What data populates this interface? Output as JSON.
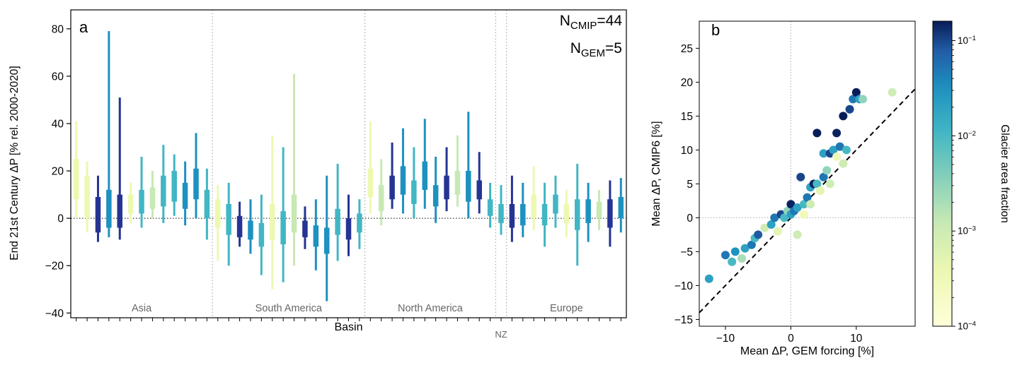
{
  "chart_data": [
    {
      "type": "bar",
      "panel_label": "a",
      "ylabel": "End 21st Century ΔP [% rel. 2000-2020]",
      "xlabel": "Basin",
      "ylim": [
        -42,
        88
      ],
      "yticks": [
        -40,
        -20,
        0,
        20,
        40,
        60,
        80
      ],
      "zero_line": 0,
      "annotations": [
        {
          "prefix": "N",
          "sub": "CMIP",
          "suffix": "=44"
        },
        {
          "prefix": "N",
          "sub": "GEM",
          "suffix": "=5"
        }
      ],
      "palette": {
        "y": "#edf8b1",
        "g": "#c7e9b4",
        "t": "#41b6c4",
        "b": "#1d91c0",
        "n": "#253494"
      },
      "bar_format": {
        "c": "color key",
        "r": "full range [lo,hi]",
        "q": "thick bar range [lo,hi]"
      },
      "regions": [
        {
          "name": "Asia",
          "below": false,
          "bars": [
            {
              "c": "y",
              "r": [
                0,
                41
              ],
              "q": [
                8,
                25
              ]
            },
            {
              "c": "y",
              "r": [
                -6,
                24
              ],
              "q": [
                0,
                18
              ]
            },
            {
              "c": "n",
              "r": [
                -10,
                18
              ],
              "q": [
                -6,
                9
              ]
            },
            {
              "c": "b",
              "r": [
                -8,
                79
              ],
              "q": [
                -4,
                12
              ]
            },
            {
              "c": "n",
              "r": [
                -9,
                51
              ],
              "q": [
                -4,
                10
              ]
            },
            {
              "c": "y",
              "r": [
                -2,
                15
              ],
              "q": [
                2,
                10
              ]
            },
            {
              "c": "t",
              "r": [
                -4,
                26
              ],
              "q": [
                2,
                12
              ]
            },
            {
              "c": "g",
              "r": [
                0,
                20
              ],
              "q": [
                4,
                13
              ]
            },
            {
              "c": "t",
              "r": [
                -2,
                31
              ],
              "q": [
                5,
                18
              ]
            },
            {
              "c": "t",
              "r": [
                1,
                27
              ],
              "q": [
                7,
                20
              ]
            },
            {
              "c": "b",
              "r": [
                -3,
                24
              ],
              "q": [
                4,
                15
              ]
            },
            {
              "c": "b",
              "r": [
                0,
                36
              ],
              "q": [
                8,
                21
              ]
            },
            {
              "c": "t",
              "r": [
                -9,
                21
              ],
              "q": [
                0,
                12
              ]
            }
          ]
        },
        {
          "name": "South America",
          "below": false,
          "bars": [
            {
              "c": "y",
              "r": [
                -18,
                14
              ],
              "q": [
                -4,
                8
              ]
            },
            {
              "c": "t",
              "r": [
                -20,
                15
              ],
              "q": [
                -7,
                6
              ]
            },
            {
              "c": "n",
              "r": [
                -12,
                7
              ],
              "q": [
                -8,
                1
              ]
            },
            {
              "c": "b",
              "r": [
                -15,
                8
              ],
              "q": [
                -9,
                -1
              ]
            },
            {
              "c": "t",
              "r": [
                -24,
                10
              ],
              "q": [
                -12,
                -2
              ]
            },
            {
              "c": "y",
              "r": [
                -30,
                35
              ],
              "q": [
                -9,
                6
              ]
            },
            {
              "c": "t",
              "r": [
                -27,
                30
              ],
              "q": [
                -11,
                3
              ]
            },
            {
              "c": "g",
              "r": [
                -20,
                61
              ],
              "q": [
                -6,
                10
              ]
            },
            {
              "c": "n",
              "r": [
                -13,
                5
              ],
              "q": [
                -8,
                -1
              ]
            },
            {
              "c": "b",
              "r": [
                -22,
                8
              ],
              "q": [
                -12,
                -3
              ]
            },
            {
              "c": "b",
              "r": [
                -35,
                18
              ],
              "q": [
                -15,
                -4
              ]
            },
            {
              "c": "t",
              "r": [
                -18,
                23
              ],
              "q": [
                -7,
                4
              ]
            },
            {
              "c": "n",
              "r": [
                -16,
                10
              ],
              "q": [
                -9,
                0
              ]
            },
            {
              "c": "t",
              "r": [
                -13,
                8
              ],
              "q": [
                -6,
                2
              ]
            }
          ]
        },
        {
          "name": "North America",
          "below": false,
          "bars": [
            {
              "c": "y",
              "r": [
                2,
                41
              ],
              "q": [
                9,
                21
              ]
            },
            {
              "c": "g",
              "r": [
                -3,
                25
              ],
              "q": [
                3,
                14
              ]
            },
            {
              "c": "n",
              "r": [
                4,
                32
              ],
              "q": [
                8,
                18
              ]
            },
            {
              "c": "b",
              "r": [
                2,
                38
              ],
              "q": [
                10,
                22
              ]
            },
            {
              "c": "t",
              "r": [
                0,
                30
              ],
              "q": [
                6,
                16
              ]
            },
            {
              "c": "b",
              "r": [
                4,
                42
              ],
              "q": [
                12,
                24
              ]
            },
            {
              "c": "b",
              "r": [
                -2,
                26
              ],
              "q": [
                5,
                14
              ]
            },
            {
              "c": "n",
              "r": [
                3,
                30
              ],
              "q": [
                8,
                18
              ]
            },
            {
              "c": "g",
              "r": [
                5,
                35
              ],
              "q": [
                10,
                20
              ]
            },
            {
              "c": "b",
              "r": [
                0,
                45
              ],
              "q": [
                7,
                20
              ]
            },
            {
              "c": "n",
              "r": [
                2,
                28
              ],
              "q": [
                8,
                16
              ]
            },
            {
              "c": "t",
              "r": [
                -4,
                15
              ],
              "q": [
                1,
                8
              ]
            }
          ]
        },
        {
          "name": "NZ",
          "below": true,
          "bars": [
            {
              "c": "t",
              "r": [
                -7,
                14
              ],
              "q": [
                -2,
                6
              ]
            }
          ]
        },
        {
          "name": "Europe",
          "below": false,
          "bars": [
            {
              "c": "n",
              "r": [
                -10,
                18
              ],
              "q": [
                -4,
                6
              ]
            },
            {
              "c": "b",
              "r": [
                -8,
                15
              ],
              "q": [
                -3,
                6
              ]
            },
            {
              "c": "y",
              "r": [
                -5,
                22
              ],
              "q": [
                0,
                10
              ]
            },
            {
              "c": "t",
              "r": [
                -12,
                15
              ],
              "q": [
                -3,
                6
              ]
            },
            {
              "c": "t",
              "r": [
                -4,
                18
              ],
              "q": [
                2,
                10
              ]
            },
            {
              "c": "y",
              "r": [
                -8,
                12
              ],
              "q": [
                -2,
                6
              ]
            },
            {
              "c": "t",
              "r": [
                -20,
                23
              ],
              "q": [
                -5,
                8
              ]
            },
            {
              "c": "b",
              "r": [
                -10,
                15
              ],
              "q": [
                -2,
                8
              ]
            },
            {
              "c": "g",
              "r": [
                -5,
                12
              ],
              "q": [
                0,
                7
              ]
            },
            {
              "c": "n",
              "r": [
                -12,
                16
              ],
              "q": [
                -4,
                8
              ]
            },
            {
              "c": "b",
              "r": [
                -6,
                17
              ],
              "q": [
                0,
                9
              ]
            }
          ]
        }
      ]
    },
    {
      "type": "scatter",
      "panel_label": "b",
      "xlabel": "Mean ΔP, GEM forcing [%]",
      "ylabel": "Mean ΔP, CMIP6 [%]",
      "xlim": [
        -14,
        19
      ],
      "ylim": [
        -16,
        29
      ],
      "xticks": [
        -10,
        0,
        10
      ],
      "yticks": [
        -15,
        -10,
        -5,
        0,
        5,
        10,
        15,
        20,
        25
      ],
      "one_to_one_line": {
        "style": "dashed",
        "color": "#000000"
      },
      "gridlines": {
        "x_zero": true,
        "y_zero": true,
        "style": "dotted"
      },
      "points_format": [
        "x",
        "y",
        "glacier_area_fraction"
      ],
      "points": [
        [
          -12.5,
          -9,
          0.02
        ],
        [
          -10,
          -5.5,
          0.05
        ],
        [
          -9,
          -6.5,
          0.01
        ],
        [
          -8.5,
          -5,
          0.03
        ],
        [
          -7.5,
          -6,
          0.002
        ],
        [
          -7,
          -4.5,
          0.02
        ],
        [
          -6,
          -4,
          0.05
        ],
        [
          -5.5,
          -3,
          0.01
        ],
        [
          -5,
          -2.5,
          0.08
        ],
        [
          -4,
          -1.5,
          0.001
        ],
        [
          -3,
          -1,
          0.02
        ],
        [
          -2.5,
          0,
          0.05
        ],
        [
          -2,
          -2,
          0.0005
        ],
        [
          -1.5,
          0.5,
          0.1
        ],
        [
          -1,
          0,
          0.01
        ],
        [
          -0.5,
          1,
          0.003
        ],
        [
          0,
          0.5,
          0.02
        ],
        [
          0,
          2,
          0.15
        ],
        [
          0.5,
          1,
          0.05
        ],
        [
          1,
          -2.5,
          0.001
        ],
        [
          1,
          1.5,
          0.02
        ],
        [
          1.5,
          6,
          0.1
        ],
        [
          2,
          2,
          0.01
        ],
        [
          2,
          0.5,
          0.0003
        ],
        [
          2.5,
          3,
          0.05
        ],
        [
          3,
          4.5,
          0.02
        ],
        [
          3,
          2,
          0.001
        ],
        [
          3.5,
          5,
          0.15
        ],
        [
          4,
          5,
          0.01
        ],
        [
          4,
          12.5,
          0.2
        ],
        [
          4.5,
          4,
          0.0005
        ],
        [
          5,
          6,
          0.05
        ],
        [
          5,
          9.5,
          0.02
        ],
        [
          5.5,
          7,
          0.003
        ],
        [
          6,
          9.5,
          0.1
        ],
        [
          6,
          5,
          0.001
        ],
        [
          6.5,
          10,
          0.02
        ],
        [
          7,
          9,
          0.0003
        ],
        [
          7,
          12.5,
          0.15
        ],
        [
          7.5,
          10.5,
          0.05
        ],
        [
          8,
          8,
          0.001
        ],
        [
          8,
          15,
          0.2
        ],
        [
          8.5,
          10,
          0.01
        ],
        [
          9,
          16,
          0.1
        ],
        [
          9.5,
          17.5,
          0.05
        ],
        [
          10,
          18.5,
          0.2
        ],
        [
          10.5,
          17.5,
          0.02
        ],
        [
          11,
          17.5,
          0.003
        ],
        [
          15.5,
          18.5,
          0.001
        ]
      ],
      "colorbar": {
        "label": "Glacier area fraction",
        "scale": "log",
        "range": [
          0.0001,
          0.16
        ],
        "ticks": [
          {
            "base": "10",
            "exp": "−1",
            "value": 0.1
          },
          {
            "base": "10",
            "exp": "−2",
            "value": 0.01
          },
          {
            "base": "10",
            "exp": "−3",
            "value": 0.001
          },
          {
            "base": "10",
            "exp": "−4",
            "value": 0.0001
          }
        ],
        "colormap_stops": [
          [
            0,
            "#ffffd9"
          ],
          [
            0.18,
            "#edf8b1"
          ],
          [
            0.34,
            "#c7e9b4"
          ],
          [
            0.5,
            "#7fcdbb"
          ],
          [
            0.64,
            "#41b6c4"
          ],
          [
            0.78,
            "#1d91c0"
          ],
          [
            0.9,
            "#225ea8"
          ],
          [
            1,
            "#081d58"
          ]
        ]
      }
    }
  ]
}
